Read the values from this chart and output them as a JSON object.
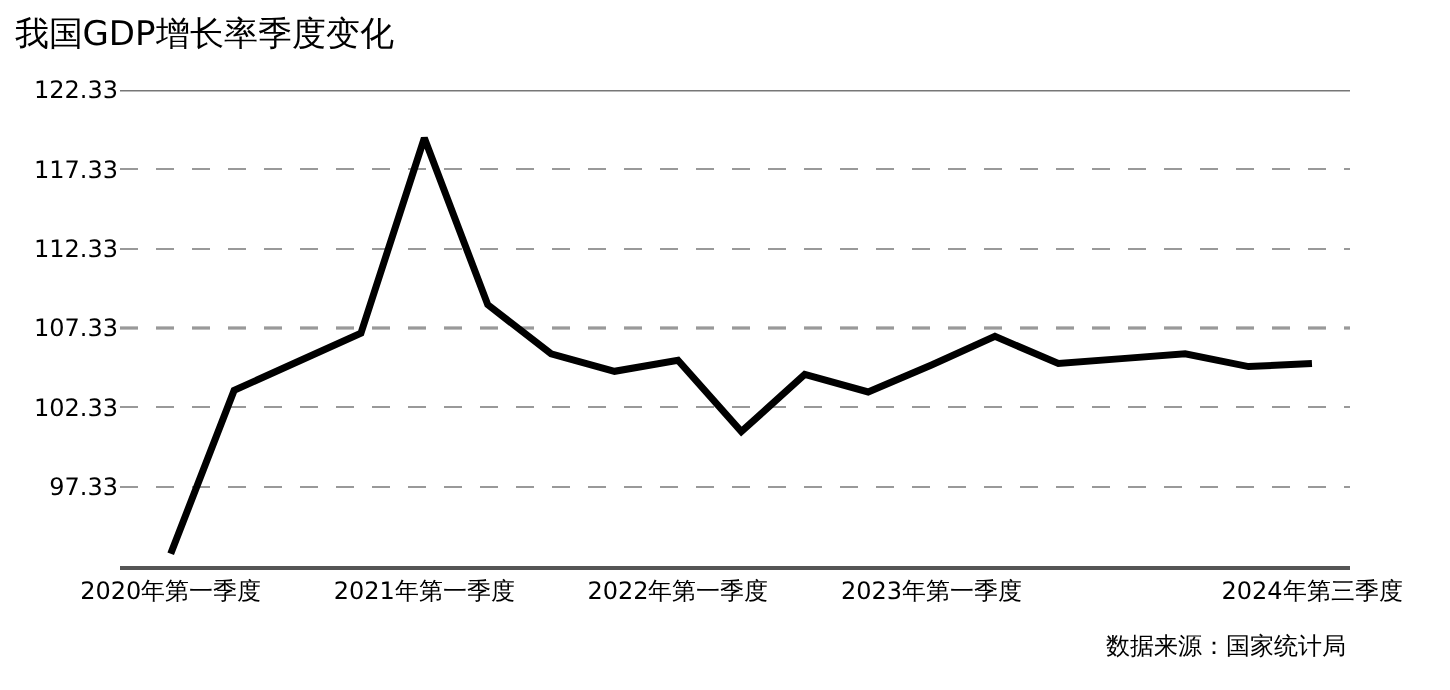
{
  "chart_data": {
    "type": "line",
    "title": "我国GDP增长率季度变化",
    "categories": [
      "2020年第一季度",
      null,
      null,
      null,
      "2021年第一季度",
      null,
      null,
      null,
      "2022年第一季度",
      null,
      null,
      null,
      "2023年第一季度",
      null,
      null,
      null,
      null,
      null,
      "2024年第三季度"
    ],
    "series": [
      {
        "color": "#000000",
        "values": [
          93.1,
          103.4,
          105.2,
          107.0,
          119.3,
          108.8,
          105.7,
          104.6,
          105.3,
          100.8,
          104.4,
          103.3,
          105.0,
          106.8,
          105.1,
          105.4,
          105.7,
          104.9,
          105.1
        ]
      }
    ],
    "ylim": [
      92.33,
      122.33
    ],
    "yticks": [
      97.33,
      102.33,
      107.33,
      112.33,
      117.33,
      122.33
    ],
    "grid": "y",
    "marker": "none",
    "line_style": "solid",
    "ref_lines": [
      {
        "axis": "y",
        "value": 107.33,
        "color": "#000000",
        "line_style": "dashed"
      }
    ],
    "annotations": [
      "数据来源：国家统计局"
    ]
  }
}
